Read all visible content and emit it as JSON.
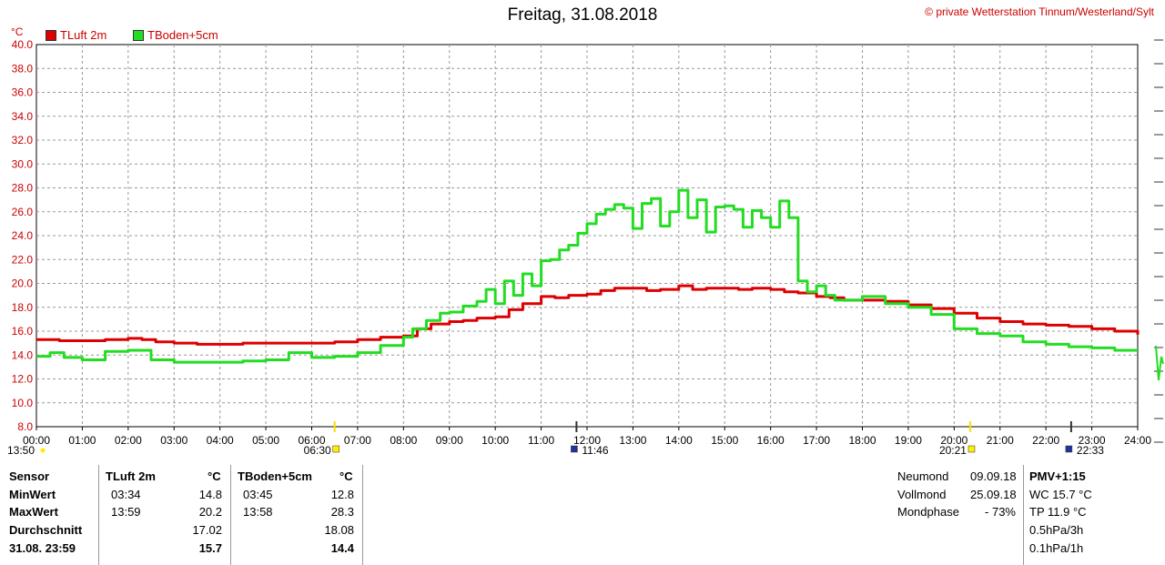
{
  "title": "Freitag, 31.08.2018",
  "copyright": "© private Wetterstation Tinnum/Westerland/Sylt",
  "chart_data": {
    "type": "line",
    "ylabel": "°C",
    "ylim": [
      8.0,
      40.0
    ],
    "yticks": [
      "8.0",
      "10.0",
      "12.0",
      "14.0",
      "16.0",
      "18.0",
      "20.0",
      "22.0",
      "24.0",
      "26.0",
      "28.0",
      "30.0",
      "32.0",
      "34.0",
      "36.0",
      "38.0",
      "40.0"
    ],
    "xticks": [
      "00:00",
      "01:00",
      "02:00",
      "03:00",
      "04:00",
      "05:00",
      "06:00",
      "07:00",
      "08:00",
      "09:00",
      "10:00",
      "11:00",
      "12:00",
      "13:00",
      "14:00",
      "15:00",
      "16:00",
      "17:00",
      "18:00",
      "19:00",
      "20:00",
      "21:00",
      "22:00",
      "23:00",
      "24:00"
    ],
    "xlim": [
      0,
      24
    ],
    "grid": true,
    "legend_position": "top-left",
    "series": [
      {
        "name": "TLuft 2m",
        "color": "#dd0000",
        "x": [
          0,
          0.5,
          1,
          1.5,
          2,
          2.3,
          2.6,
          3,
          3.5,
          4,
          4.5,
          5,
          5.5,
          6,
          6.5,
          7,
          7.5,
          8,
          8.3,
          8.6,
          9,
          9.3,
          9.6,
          10,
          10.3,
          10.6,
          11,
          11.3,
          11.6,
          12,
          12.3,
          12.6,
          13,
          13.3,
          13.6,
          14,
          14.3,
          14.6,
          15,
          15.3,
          15.6,
          16,
          16.3,
          16.6,
          17,
          17.3,
          17.6,
          18,
          18.5,
          19,
          19.5,
          20,
          20.5,
          21,
          21.5,
          22,
          22.5,
          23,
          23.5,
          24
        ],
        "y": [
          15.3,
          15.2,
          15.2,
          15.3,
          15.4,
          15.3,
          15.1,
          15.0,
          14.9,
          14.9,
          15.0,
          15.0,
          15.0,
          15.0,
          15.1,
          15.3,
          15.5,
          15.6,
          16.2,
          16.6,
          16.8,
          16.9,
          17.1,
          17.2,
          17.8,
          18.3,
          18.9,
          18.8,
          19.0,
          19.1,
          19.4,
          19.6,
          19.6,
          19.4,
          19.5,
          19.8,
          19.5,
          19.6,
          19.6,
          19.5,
          19.6,
          19.5,
          19.3,
          19.2,
          18.9,
          18.8,
          18.6,
          18.6,
          18.5,
          18.2,
          17.9,
          17.5,
          17.1,
          16.8,
          16.6,
          16.5,
          16.4,
          16.2,
          16.0,
          15.7
        ]
      },
      {
        "name": "TBoden+5cm",
        "color": "#22dd22",
        "x": [
          0,
          0.3,
          0.6,
          1,
          1.5,
          2,
          2.5,
          3,
          3.5,
          4,
          4.5,
          5,
          5.5,
          6,
          6.5,
          7,
          7.5,
          8,
          8.2,
          8.5,
          8.8,
          9,
          9.3,
          9.6,
          9.8,
          10,
          10.2,
          10.4,
          10.6,
          10.8,
          11,
          11.2,
          11.4,
          11.6,
          11.8,
          12,
          12.2,
          12.4,
          12.6,
          12.8,
          13,
          13.2,
          13.4,
          13.6,
          13.8,
          14,
          14.2,
          14.4,
          14.6,
          14.8,
          15,
          15.2,
          15.4,
          15.6,
          15.8,
          16,
          16.2,
          16.4,
          16.6,
          16.8,
          17,
          17.2,
          17.4,
          17.6,
          18,
          18.5,
          19,
          19.5,
          20,
          20.5,
          21,
          21.5,
          22,
          22.5,
          23,
          23.5,
          24
        ],
        "y": [
          13.9,
          14.2,
          13.8,
          13.6,
          14.3,
          14.4,
          13.6,
          13.4,
          13.4,
          13.4,
          13.5,
          13.6,
          14.2,
          13.8,
          13.9,
          14.2,
          14.8,
          15.5,
          16.2,
          16.9,
          17.5,
          17.6,
          18.1,
          18.5,
          19.5,
          18.3,
          20.2,
          19.0,
          20.8,
          19.8,
          21.9,
          22.0,
          22.8,
          23.2,
          24.2,
          25.0,
          25.8,
          26.2,
          26.6,
          26.3,
          24.6,
          26.7,
          27.1,
          24.8,
          26.0,
          27.8,
          25.5,
          27.0,
          24.3,
          26.4,
          26.5,
          26.2,
          24.7,
          26.1,
          25.5,
          24.7,
          26.9,
          25.5,
          20.2,
          19.3,
          19.8,
          19.0,
          18.6,
          18.6,
          18.9,
          18.3,
          18.0,
          17.4,
          16.2,
          15.8,
          15.6,
          15.1,
          14.9,
          14.7,
          14.6,
          14.4,
          14.4
        ]
      }
    ],
    "markers": [
      {
        "time": "06:30",
        "x": 6.5
      },
      {
        "time": "11:46",
        "x": 11.77
      },
      {
        "time": "20:21",
        "x": 20.35
      },
      {
        "time": "22:33",
        "x": 22.55
      }
    ],
    "start_time_label": "13:50"
  },
  "legend": [
    {
      "label": "TLuft 2m",
      "color": "#dd0000"
    },
    {
      "label": "TBoden+5cm",
      "color": "#22dd22"
    }
  ],
  "stats": {
    "sensor_label": "Sensor",
    "col1_header": "TLuft 2m",
    "col1_unit": "°C",
    "col2_header": "TBoden+5cm",
    "col2_unit": "°C",
    "rows": [
      {
        "label": "MinWert",
        "t1": "03:34",
        "v1": "14.8",
        "t2": "03:45",
        "v2": "12.8"
      },
      {
        "label": "MaxWert",
        "t1": "13:59",
        "v1": "20.2",
        "t2": "13:58",
        "v2": "28.3"
      },
      {
        "label": "Durchschnitt",
        "t1": "",
        "v1": "17.02",
        "t2": "",
        "v2": "18.08"
      },
      {
        "label": "31.08. 23:59",
        "t1": "",
        "v1": "15.7",
        "t2": "",
        "v2": "14.4"
      }
    ],
    "moon": [
      {
        "label": "Neumond",
        "value": "09.09.18"
      },
      {
        "label": "Vollmond",
        "value": "25.09.18"
      },
      {
        "label": "Mondphase",
        "value": "- 73%"
      }
    ],
    "extra_header": "PMV+1:15",
    "extra": [
      "WC 15.7 °C",
      "TP 11.9 °C",
      "0.5hPa/3h",
      "0.1hPa/1h"
    ]
  }
}
